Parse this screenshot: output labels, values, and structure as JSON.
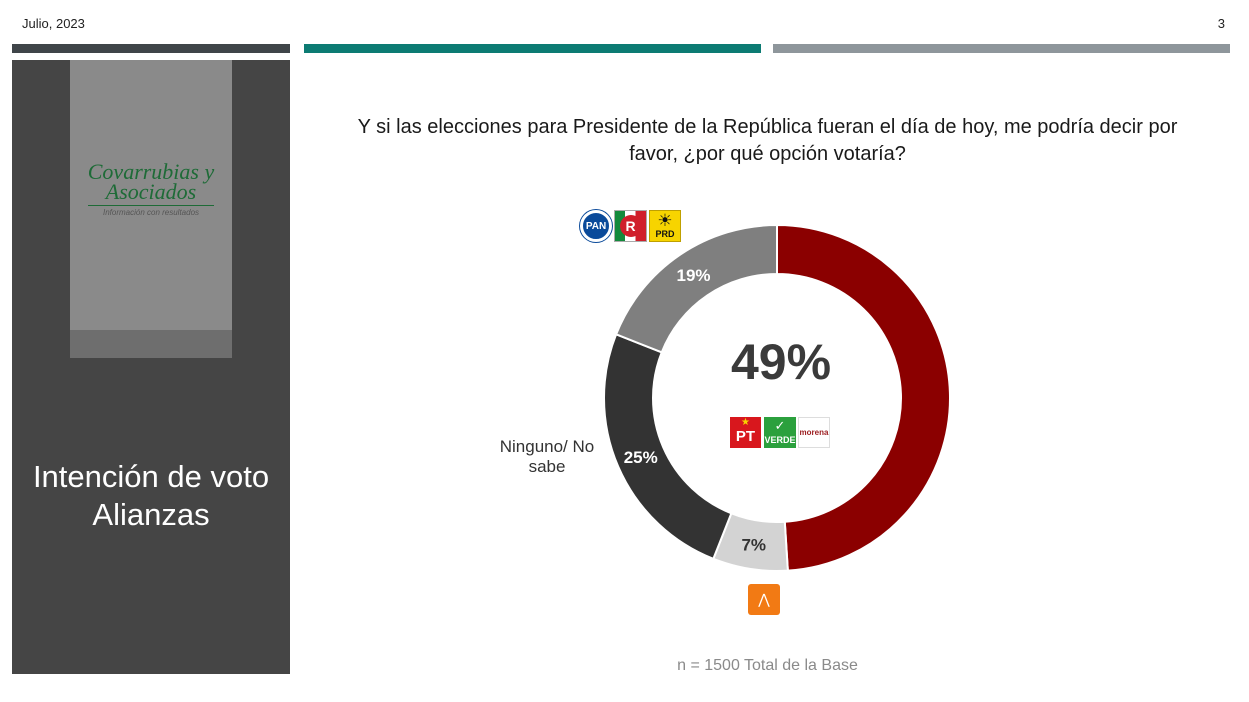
{
  "header": {
    "date": "Julio, 2023",
    "page_number": "3"
  },
  "sidebar": {
    "logo_text": "Covarrubias y Asociados",
    "logo_tagline": "Información con resultados",
    "title": "Intención de voto Alianzas"
  },
  "colors": {
    "morena_alliance": "#8b0000",
    "pan_pri_prd_alliance": "#7f7f7f",
    "ninguno": "#333333",
    "movimiento_ciudadano": "#d3d3d3"
  },
  "icons": {
    "pan": "pan-logo-icon",
    "pri": "pri-logo-icon",
    "prd": "prd-logo-icon",
    "pt": "pt-logo-icon",
    "verde": "verde-logo-icon",
    "morena": "morena-logo-icon",
    "mc": "movimiento-ciudadano-logo-icon"
  },
  "logos": {
    "pan": "PAN",
    "pri": "R",
    "prd": "PRD",
    "pt": "PT",
    "verde": "VERDE",
    "morena": "morena"
  },
  "chart_data": {
    "type": "pie",
    "title": "Y si las elecciones para Presidente de la República fueran el día de hoy, me podría decir por favor, ¿por qué opción votaría?",
    "center_label": "49%",
    "note": "n = 1500 Total de la Base",
    "slices": [
      {
        "label": "PT, VERDE, morena",
        "value": 49,
        "display": "49%",
        "color": "#8b0000"
      },
      {
        "label": "Movimiento Ciudadano",
        "value": 7,
        "display": "7%",
        "color": "#d3d3d3"
      },
      {
        "label": "Ninguno/ No sabe",
        "value": 25,
        "display": "25%",
        "color": "#333333"
      },
      {
        "label": "PAN, PRI, PRD",
        "value": 19,
        "display": "19%",
        "color": "#7f7f7f"
      }
    ]
  }
}
